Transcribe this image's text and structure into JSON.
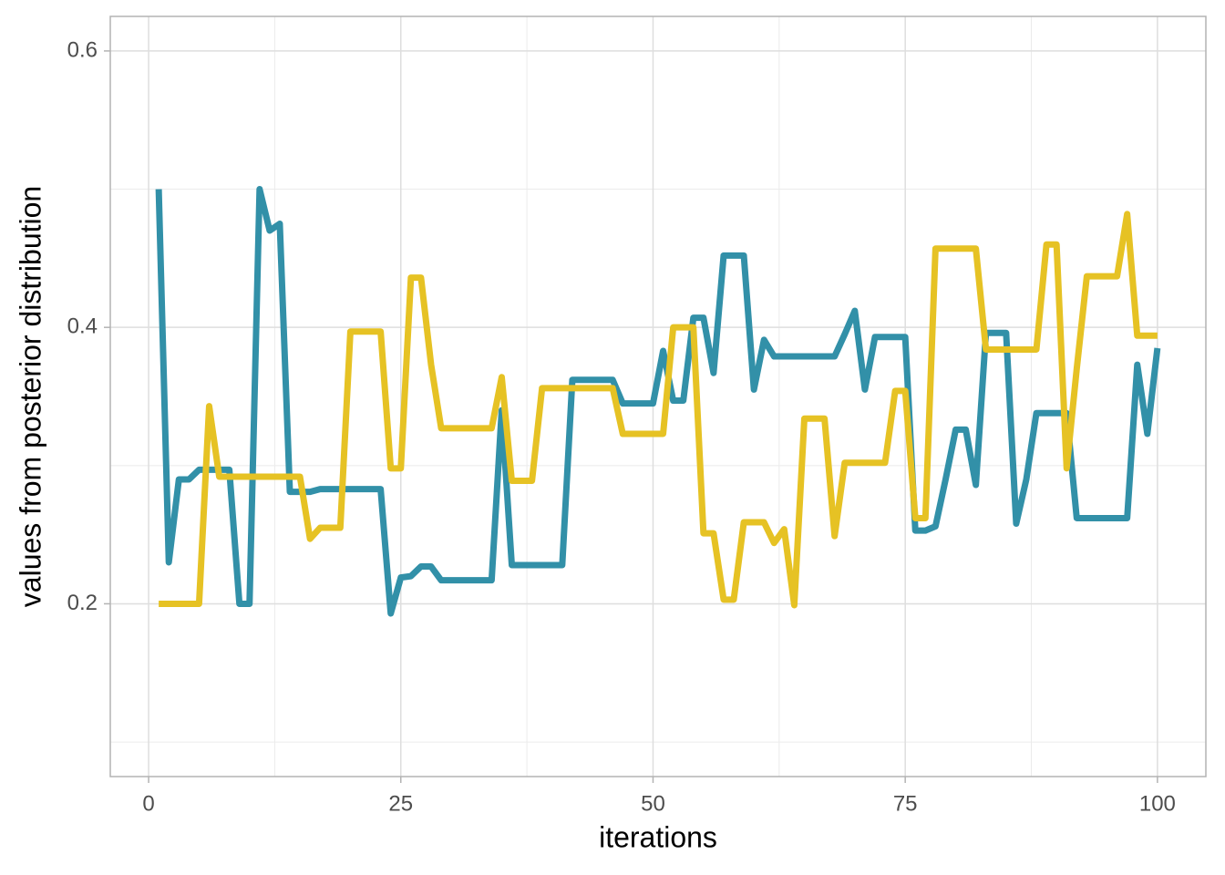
{
  "chart_data": {
    "type": "line",
    "x_label": "iterations",
    "y_label": "values from posterior distribution",
    "x": [
      1,
      2,
      3,
      4,
      5,
      6,
      7,
      8,
      9,
      10,
      11,
      12,
      13,
      14,
      15,
      16,
      17,
      18,
      19,
      20,
      21,
      22,
      23,
      24,
      25,
      26,
      27,
      28,
      29,
      30,
      31,
      32,
      33,
      34,
      35,
      36,
      37,
      38,
      39,
      40,
      41,
      42,
      43,
      44,
      45,
      46,
      47,
      48,
      49,
      50,
      51,
      52,
      53,
      54,
      55,
      56,
      57,
      58,
      59,
      60,
      61,
      62,
      63,
      64,
      65,
      66,
      67,
      68,
      69,
      70,
      71,
      72,
      73,
      74,
      75,
      76,
      77,
      78,
      79,
      80,
      81,
      82,
      83,
      84,
      85,
      86,
      87,
      88,
      89,
      90,
      91,
      92,
      93,
      94,
      95,
      96,
      97,
      98,
      99,
      100
    ],
    "series": [
      {
        "color": "#3290a8",
        "values": [
          0.5,
          0.23,
          0.29,
          0.29,
          0.297,
          0.297,
          0.297,
          0.297,
          0.2,
          0.2,
          0.5,
          0.47,
          0.475,
          0.281,
          0.281,
          0.281,
          0.283,
          0.283,
          0.283,
          0.283,
          0.283,
          0.283,
          0.283,
          0.193,
          0.219,
          0.22,
          0.227,
          0.227,
          0.217,
          0.217,
          0.217,
          0.217,
          0.217,
          0.217,
          0.34,
          0.228,
          0.228,
          0.228,
          0.228,
          0.228,
          0.228,
          0.362,
          0.362,
          0.362,
          0.362,
          0.362,
          0.345,
          0.345,
          0.345,
          0.345,
          0.383,
          0.347,
          0.347,
          0.407,
          0.407,
          0.367,
          0.452,
          0.452,
          0.452,
          0.355,
          0.391,
          0.379,
          0.379,
          0.379,
          0.379,
          0.379,
          0.379,
          0.379,
          0.395,
          0.412,
          0.355,
          0.393,
          0.393,
          0.393,
          0.393,
          0.253,
          0.253,
          0.256,
          0.29,
          0.326,
          0.326,
          0.286,
          0.396,
          0.396,
          0.396,
          0.258,
          0.29,
          0.338,
          0.338,
          0.338,
          0.338,
          0.262,
          0.262,
          0.262,
          0.262,
          0.262,
          0.262,
          0.373,
          0.323,
          0.385
        ]
      },
      {
        "color": "#e6c224",
        "values": [
          0.2,
          0.2,
          0.2,
          0.2,
          0.2,
          0.343,
          0.292,
          0.292,
          0.292,
          0.292,
          0.292,
          0.292,
          0.292,
          0.292,
          0.292,
          0.247,
          0.255,
          0.255,
          0.255,
          0.397,
          0.397,
          0.397,
          0.397,
          0.298,
          0.298,
          0.436,
          0.436,
          0.373,
          0.327,
          0.327,
          0.327,
          0.327,
          0.327,
          0.327,
          0.364,
          0.289,
          0.289,
          0.289,
          0.356,
          0.356,
          0.356,
          0.356,
          0.356,
          0.356,
          0.356,
          0.356,
          0.323,
          0.323,
          0.323,
          0.323,
          0.323,
          0.4,
          0.4,
          0.4,
          0.251,
          0.251,
          0.203,
          0.203,
          0.259,
          0.259,
          0.259,
          0.244,
          0.254,
          0.199,
          0.334,
          0.334,
          0.334,
          0.249,
          0.302,
          0.302,
          0.302,
          0.302,
          0.302,
          0.354,
          0.354,
          0.262,
          0.262,
          0.457,
          0.457,
          0.457,
          0.457,
          0.457,
          0.384,
          0.384,
          0.384,
          0.384,
          0.384,
          0.384,
          0.46,
          0.46,
          0.298,
          0.37,
          0.437,
          0.437,
          0.437,
          0.437,
          0.482,
          0.394,
          0.394,
          0.394
        ]
      }
    ],
    "xlim": [
      -3.8,
      104.8
    ],
    "ylim": [
      0.075,
      0.625
    ],
    "xticks": [
      0,
      25,
      50,
      75,
      100
    ],
    "yticks": [
      0.2,
      0.4,
      0.6
    ],
    "xminor": [
      12.5,
      37.5,
      62.5,
      87.5
    ],
    "yminor": [
      0.1,
      0.3,
      0.5
    ],
    "grid": true
  }
}
